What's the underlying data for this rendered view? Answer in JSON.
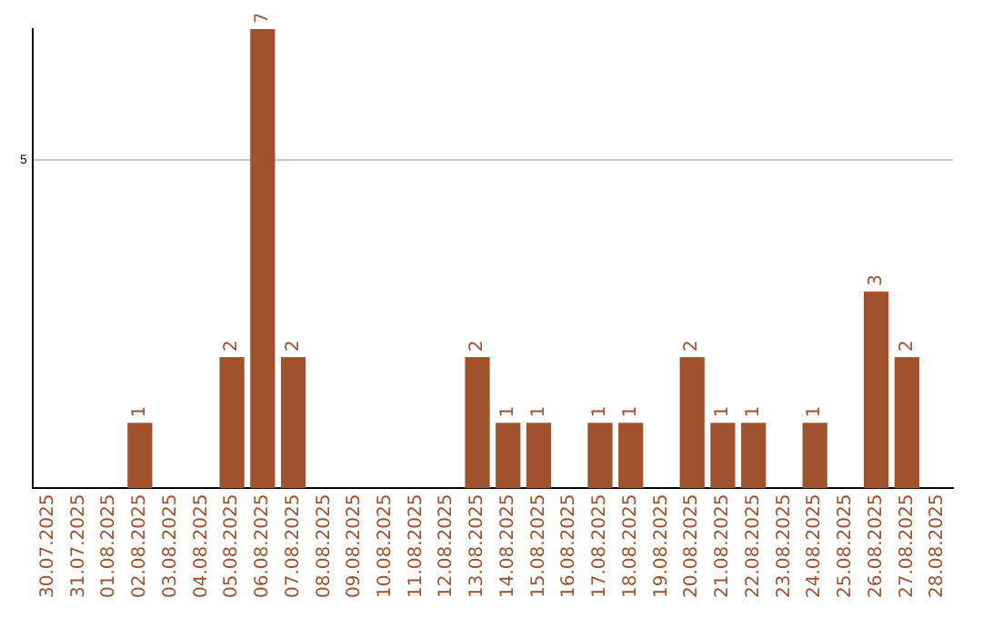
{
  "chart_data": {
    "type": "bar",
    "categories": [
      "30.07.2025",
      "31.07.2025",
      "01.08.2025",
      "02.08.2025",
      "03.08.2025",
      "04.08.2025",
      "05.08.2025",
      "06.08.2025",
      "07.08.2025",
      "08.08.2025",
      "09.08.2025",
      "10.08.2025",
      "11.08.2025",
      "12.08.2025",
      "13.08.2025",
      "14.08.2025",
      "15.08.2025",
      "16.08.2025",
      "17.08.2025",
      "18.08.2025",
      "19.08.2025",
      "20.08.2025",
      "21.08.2025",
      "22.08.2025",
      "23.08.2025",
      "24.08.2025",
      "25.08.2025",
      "26.08.2025",
      "27.08.2025",
      "28.08.2025"
    ],
    "values": [
      null,
      null,
      null,
      1,
      null,
      null,
      2,
      7,
      2,
      null,
      null,
      null,
      null,
      null,
      2,
      1,
      1,
      null,
      1,
      1,
      null,
      2,
      1,
      1,
      null,
      1,
      null,
      3,
      2,
      null
    ],
    "color": "#a0522d",
    "ylim": [
      0,
      7
    ],
    "yticks": [
      5
    ],
    "grid": "y",
    "data_labels": true,
    "legend": false
  }
}
